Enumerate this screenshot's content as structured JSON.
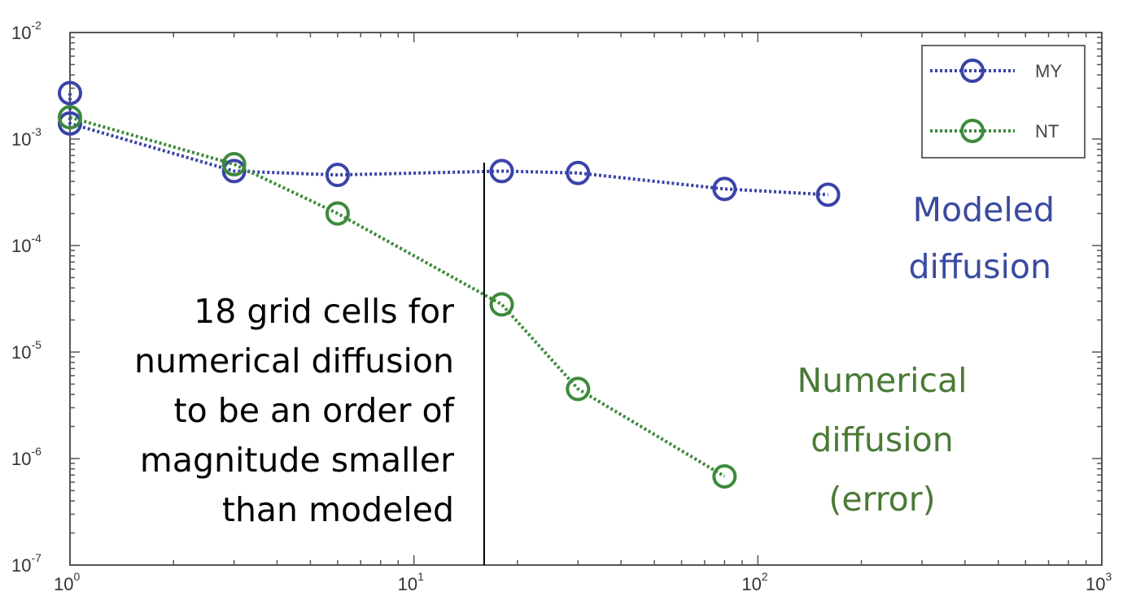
{
  "chart_data": {
    "type": "line",
    "title": "",
    "xlabel": "",
    "ylabel": "",
    "x_scale": "log",
    "y_scale": "log",
    "xlim": [
      1,
      1000
    ],
    "ylim": [
      1e-07,
      0.01
    ],
    "grid": false,
    "legend_placement": "top-right",
    "x_ticks": [
      {
        "base": "10",
        "exp": "0"
      },
      {
        "base": "10",
        "exp": "1"
      },
      {
        "base": "10",
        "exp": "2"
      },
      {
        "base": "10",
        "exp": "3"
      }
    ],
    "y_ticks": [
      {
        "base": "10",
        "exp": "-2"
      },
      {
        "base": "10",
        "exp": "-3"
      },
      {
        "base": "10",
        "exp": "-4"
      },
      {
        "base": "10",
        "exp": "-5"
      },
      {
        "base": "10",
        "exp": "-6"
      },
      {
        "base": "10",
        "exp": "-7"
      }
    ],
    "series": [
      {
        "name": "MY",
        "color": "#3a43a8",
        "marker": "circle",
        "line_style": "dotted",
        "x": [
          1,
          1,
          3,
          6,
          18,
          30,
          80,
          160
        ],
        "y": [
          0.0027,
          0.0014,
          0.0005,
          0.00046,
          0.0005,
          0.00048,
          0.00034,
          0.0003
        ]
      },
      {
        "name": "NT",
        "color": "#3d8a3b",
        "marker": "circle",
        "line_style": "dotted",
        "x": [
          1,
          3,
          6,
          18,
          30,
          80
        ],
        "y": [
          0.0016,
          0.00058,
          0.0002,
          2.8e-05,
          4.5e-06,
          6.8e-07
        ]
      }
    ],
    "annotations": {
      "vertical_line_x": 16,
      "threshold_text": [
        "18 grid cells for",
        "numerical diffusion",
        "to be an order of",
        "magnitude smaller",
        "than modeled"
      ],
      "modeled_text": [
        "Modeled",
        "diffusion"
      ],
      "modeled_color": "#3a4aa0",
      "numerical_text": [
        "Numerical",
        "diffusion",
        "(error)"
      ],
      "numerical_color": "#4a7a36"
    }
  }
}
